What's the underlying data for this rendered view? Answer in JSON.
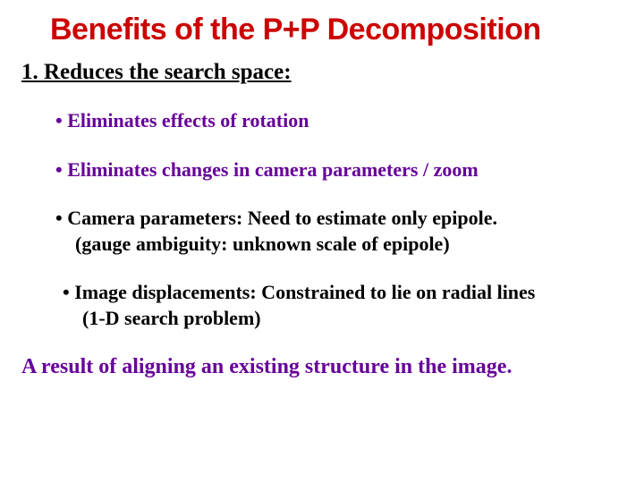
{
  "title": {
    "text": "Benefits of the P+P Decomposition",
    "color": "#cc0000",
    "fontsize": 34
  },
  "subheading": {
    "text": "1.  Reduces the search space:",
    "color": "#000000",
    "fontsize": 25
  },
  "bullets": {
    "fontsize": 22,
    "items": [
      {
        "text": "• Eliminates effects of rotation",
        "color": "#660099"
      },
      {
        "text": "• Eliminates changes in camera parameters / zoom",
        "color": "#660099"
      },
      {
        "text": "• Camera parameters:   Need to estimate only epipole.",
        "continuation": "(gauge ambiguity: unknown scale of epipole)",
        "color": "#000000"
      },
      {
        "text": "• Image displacements:   Constrained to lie on radial lines",
        "continuation": "(1-D search problem)",
        "color": "#000000"
      }
    ]
  },
  "footer": {
    "text": "A result of aligning an existing structure in the image.",
    "color": "#660099",
    "fontsize": 24
  }
}
